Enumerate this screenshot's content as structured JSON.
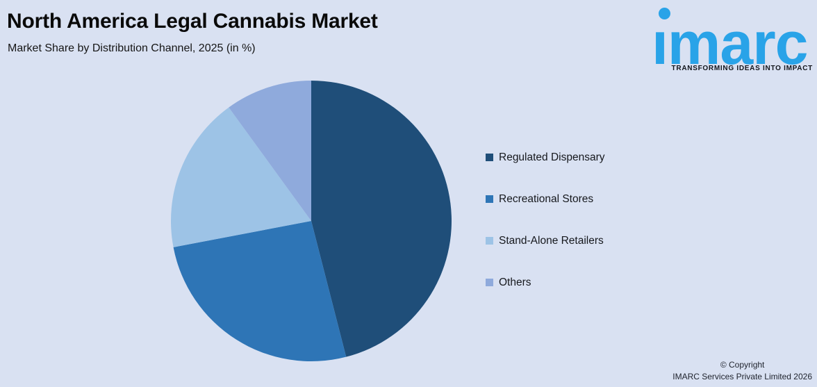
{
  "header": {
    "title": "North America Legal Cannabis Market",
    "subtitle": "Market Share by Distribution Channel, 2025 (in %)"
  },
  "logo": {
    "wordmark": "ımarc",
    "tagline": "TRANSFORMING IDEAS INTO IMPACT"
  },
  "colors": {
    "background": "#D9E1F2",
    "logo_blue": "#29A3E8",
    "slice_dark_navy": "#1F4E79",
    "slice_medium_blue": "#2E75B6",
    "slice_light_blue": "#9DC3E6",
    "slice_periwinkle": "#8FAADC"
  },
  "chart_data": {
    "type": "pie",
    "title": "North America Legal Cannabis Market",
    "subtitle": "Market Share by Distribution Channel, 2025 (in %)",
    "unit": "%",
    "start_angle_deg": 0,
    "direction": "clockwise",
    "legend_position": "right",
    "data_labels_visible": false,
    "series": [
      {
        "name": "Regulated Dispensary",
        "value": 46,
        "color": "#1F4E79"
      },
      {
        "name": "Recreational Stores",
        "value": 26,
        "color": "#2E75B6"
      },
      {
        "name": "Stand-Alone Retailers",
        "value": 18,
        "color": "#9DC3E6"
      },
      {
        "name": "Others",
        "value": 10,
        "color": "#8FAADC"
      }
    ]
  },
  "footer": {
    "copyright_line1": "© Copyright",
    "copyright_line2": "IMARC Services Private Limited 2026"
  }
}
